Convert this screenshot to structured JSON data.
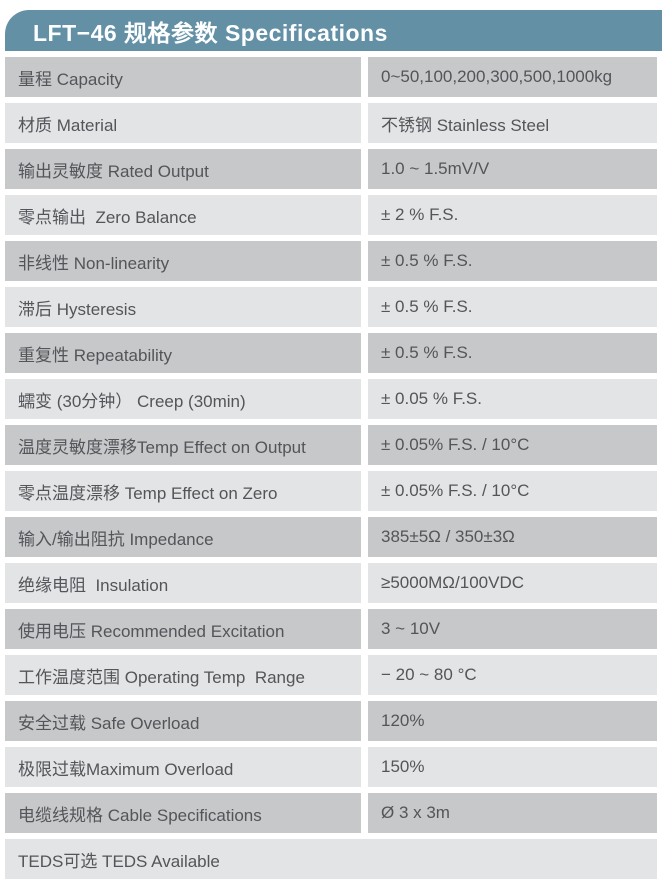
{
  "header": {
    "title": "LFT−46 规格参数 Specifications"
  },
  "colors": {
    "header_bg": "#6390a5",
    "header_text": "#fdfeff",
    "row_dark": "#c6c8ca",
    "row_light": "#e3e4e6",
    "text": "#535558"
  },
  "table": {
    "rows": [
      {
        "label": "量程 Capacity",
        "value": "0~50,100,200,300,500,1000kg",
        "shade": "dark",
        "full_width": false
      },
      {
        "label": "材质 Material",
        "value": "不锈钢 Stainless Steel",
        "shade": "light",
        "full_width": false
      },
      {
        "label": "输出灵敏度 Rated Output",
        "value": "1.0 ~ 1.5mV/V",
        "shade": "dark",
        "full_width": false
      },
      {
        "label": "零点输出  Zero Balance",
        "value": "± 2 % F.S.",
        "shade": "light",
        "full_width": false
      },
      {
        "label": "非线性 Non-linearity",
        "value": "± 0.5 % F.S.",
        "shade": "dark",
        "full_width": false
      },
      {
        "label": "滞后 Hysteresis",
        "value": "± 0.5 % F.S.",
        "shade": "light",
        "full_width": false
      },
      {
        "label": "重复性 Repeatability",
        "value": "± 0.5 % F.S.",
        "shade": "dark",
        "full_width": false
      },
      {
        "label": "蠕变 (30分钟） Creep (30min)",
        "value": "± 0.05 % F.S.",
        "shade": "light",
        "full_width": false
      },
      {
        "label": "温度灵敏度漂移Temp Effect on Output",
        "value": "± 0.05% F.S. / 10°C",
        "shade": "dark",
        "full_width": false
      },
      {
        "label": "零点温度漂移 Temp Effect on Zero",
        "value": "± 0.05% F.S. / 10°C",
        "shade": "light",
        "full_width": false
      },
      {
        "label": "输入/输出阻抗 Impedance",
        "value": "385±5Ω / 350±3Ω",
        "shade": "dark",
        "full_width": false
      },
      {
        "label": "绝缘电阻  Insulation",
        "value": "≥5000MΩ/100VDC",
        "shade": "light",
        "full_width": false
      },
      {
        "label": "使用电压 Recommended Excitation",
        "value": "3 ~ 10V",
        "shade": "dark",
        "full_width": false
      },
      {
        "label": "工作温度范围 Operating Temp  Range",
        "value": "− 20 ~ 80 °C",
        "shade": "light",
        "full_width": false
      },
      {
        "label": "安全过载 Safe Overload",
        "value": "120%",
        "shade": "dark",
        "full_width": false
      },
      {
        "label": "极限过载Maximum Overload",
        "value": "150%",
        "shade": "light",
        "full_width": false
      },
      {
        "label": "电缆线规格 Cable Specifications",
        "value": "Ø 3 x 3m",
        "shade": "dark",
        "full_width": false
      },
      {
        "label": "TEDS可选 TEDS Available",
        "value": "",
        "shade": "light",
        "full_width": true
      }
    ]
  }
}
